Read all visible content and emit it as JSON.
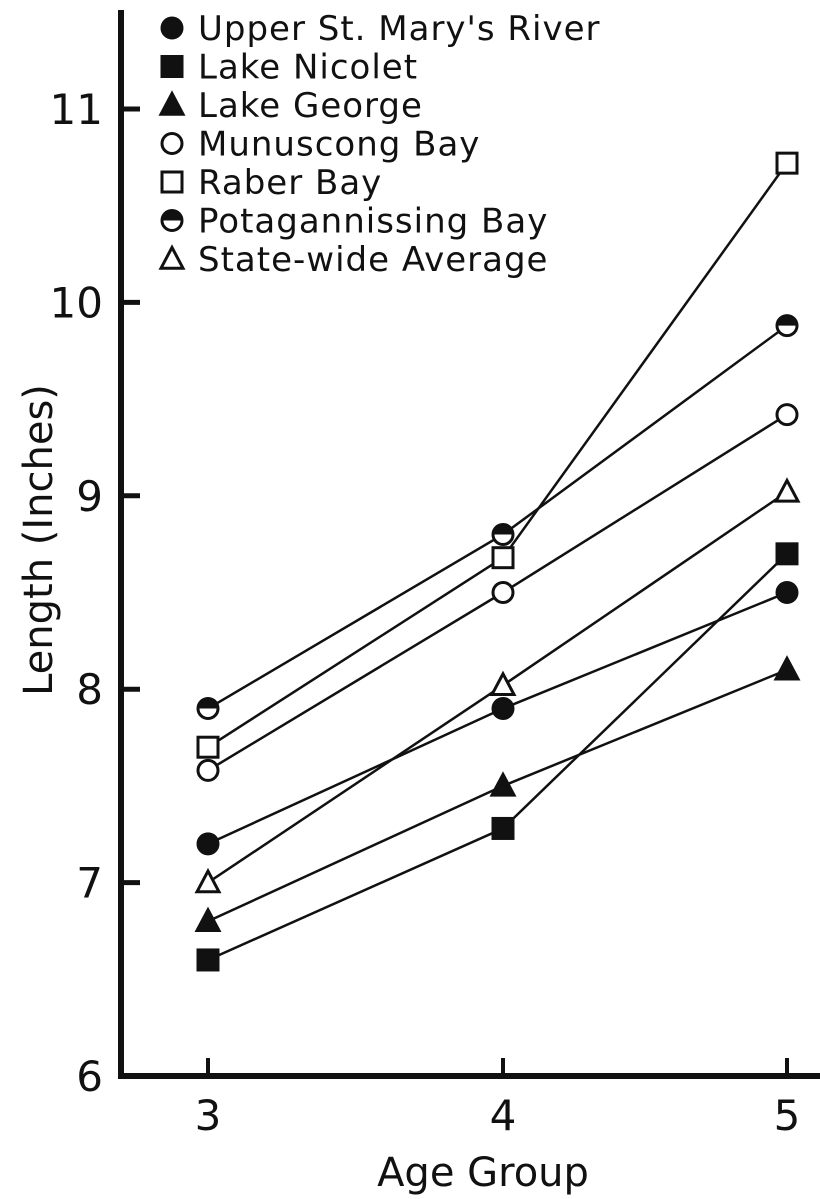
{
  "chart_data": {
    "type": "line",
    "title": "",
    "xlabel": "Age Group",
    "ylabel": "Length (Inches)",
    "x": [
      3,
      4,
      5
    ],
    "ylim": [
      6,
      11.6
    ],
    "yticks": [
      6,
      7,
      8,
      9,
      10,
      11
    ],
    "xticks": [
      3,
      4,
      5
    ],
    "grid": false,
    "legend_position": "top-left",
    "series": [
      {
        "name": "Upper St. Mary's River",
        "marker": "circle-filled",
        "values": [
          7.2,
          7.9,
          8.5
        ]
      },
      {
        "name": "Lake Nicolet",
        "marker": "square-filled",
        "values": [
          6.6,
          7.28,
          8.7
        ]
      },
      {
        "name": "Lake George",
        "marker": "triangle-filled",
        "values": [
          6.8,
          7.5,
          8.1
        ]
      },
      {
        "name": "Munuscong Bay",
        "marker": "circle-open",
        "values": [
          7.58,
          8.5,
          9.42
        ]
      },
      {
        "name": "Raber Bay",
        "marker": "square-open",
        "values": [
          7.7,
          8.68,
          10.72
        ]
      },
      {
        "name": "Potagannissing Bay",
        "marker": "circle-half",
        "values": [
          7.9,
          8.8,
          9.88
        ]
      },
      {
        "name": "State-wide Average",
        "marker": "triangle-open",
        "values": [
          7.0,
          8.02,
          9.02
        ]
      }
    ]
  }
}
